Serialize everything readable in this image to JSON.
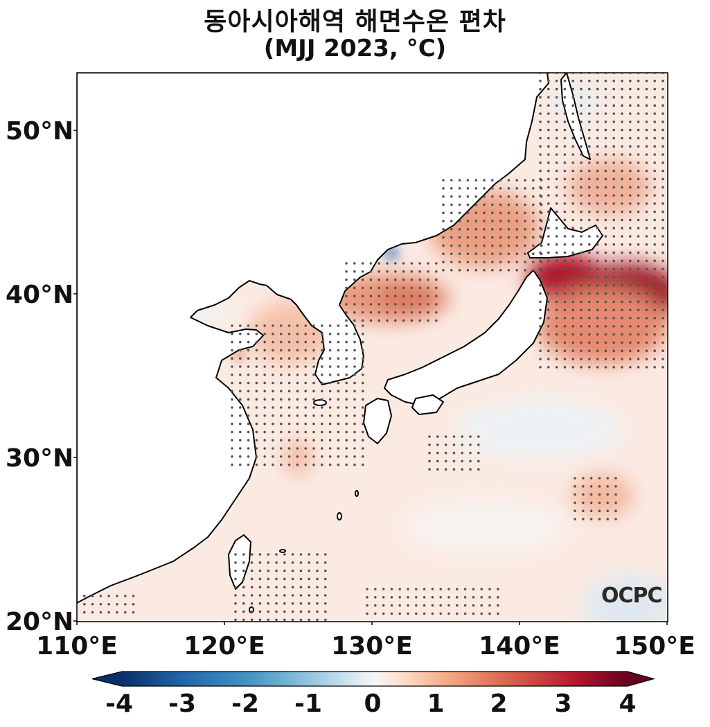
{
  "title": {
    "line1": "동아시아해역 해면수온 편차",
    "line2": "(MJJ 2023, °C)"
  },
  "map": {
    "lon_range": [
      110,
      150
    ],
    "lat_range": [
      20,
      53.5
    ],
    "lat_ticks": [
      "50°N",
      "40°N",
      "30°N",
      "20°N"
    ],
    "lon_ticks": [
      "110°E",
      "120°E",
      "130°E",
      "140°E",
      "150°E"
    ],
    "variable": "sea surface temperature anomaly",
    "stippling": "significant anomaly dots"
  },
  "colorbar": {
    "min": -4,
    "max": 4,
    "ticks": [
      "-4",
      "-3",
      "-2",
      "-1",
      "0",
      "1",
      "2",
      "3",
      "4"
    ],
    "colormap": "RdBu_r",
    "extend": "both"
  },
  "logo": "OCPC"
}
